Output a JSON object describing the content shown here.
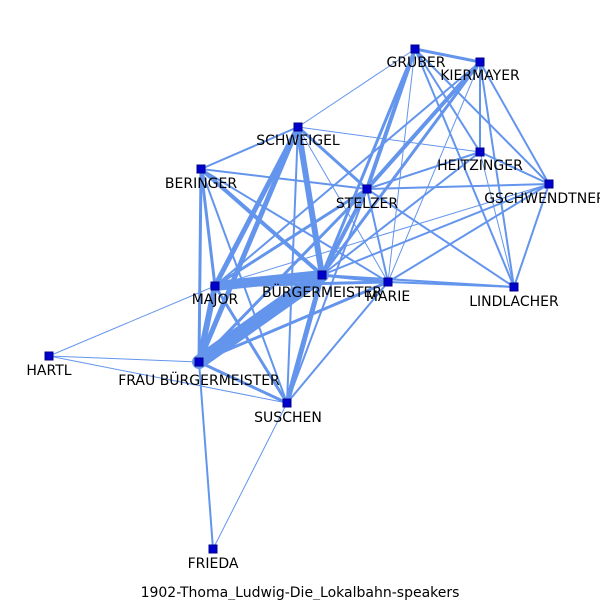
{
  "title": "1902-Thoma_Ludwig-Die_Lokalbahn-speakers",
  "colors": {
    "edge": "#6495ED",
    "node_fill": "#0000CD",
    "node_stroke": "#00008B",
    "text": "#000000",
    "background": "#FFFFFF"
  },
  "nodes": [
    {
      "id": "gruber",
      "label": "GRUBER"
    },
    {
      "id": "kiermayer",
      "label": "KIERMAYER"
    },
    {
      "id": "schweigel",
      "label": "SCHWEIGEL"
    },
    {
      "id": "heitzinger",
      "label": "HEITZINGER"
    },
    {
      "id": "beringer",
      "label": "BERINGER"
    },
    {
      "id": "stelzer",
      "label": "STELZER"
    },
    {
      "id": "gschwendtner",
      "label": "GSCHWENDTNER"
    },
    {
      "id": "major",
      "label": "MAJOR"
    },
    {
      "id": "burgermeister",
      "label": "BÜRGERMEISTER"
    },
    {
      "id": "marie",
      "label": "MARIE"
    },
    {
      "id": "lindlacher",
      "label": "LINDLACHER"
    },
    {
      "id": "hartl",
      "label": "HARTL"
    },
    {
      "id": "frau_burgermeister",
      "label": "FRAU BÜRGERMEISTER"
    },
    {
      "id": "suschen",
      "label": "SUSCHEN"
    },
    {
      "id": "frieda",
      "label": "FRIEDA"
    }
  ],
  "edges": [
    {
      "source": "gruber",
      "target": "kiermayer",
      "weight": 3
    },
    {
      "source": "gruber",
      "target": "heitzinger",
      "weight": 2
    },
    {
      "source": "gruber",
      "target": "gschwendtner",
      "weight": 2
    },
    {
      "source": "gruber",
      "target": "stelzer",
      "weight": 4
    },
    {
      "source": "gruber",
      "target": "burgermeister",
      "weight": 3
    },
    {
      "source": "gruber",
      "target": "lindlacher",
      "weight": 2
    },
    {
      "source": "gruber",
      "target": "schweigel",
      "weight": 1
    },
    {
      "source": "gruber",
      "target": "marie",
      "weight": 1
    },
    {
      "source": "kiermayer",
      "target": "heitzinger",
      "weight": 2
    },
    {
      "source": "kiermayer",
      "target": "gschwendtner",
      "weight": 2
    },
    {
      "source": "kiermayer",
      "target": "stelzer",
      "weight": 4
    },
    {
      "source": "kiermayer",
      "target": "burgermeister",
      "weight": 3
    },
    {
      "source": "kiermayer",
      "target": "lindlacher",
      "weight": 2
    },
    {
      "source": "kiermayer",
      "target": "major",
      "weight": 2
    },
    {
      "source": "kiermayer",
      "target": "marie",
      "weight": 1
    },
    {
      "source": "schweigel",
      "target": "burgermeister",
      "weight": 6
    },
    {
      "source": "schweigel",
      "target": "major",
      "weight": 5
    },
    {
      "source": "schweigel",
      "target": "frau_burgermeister",
      "weight": 5
    },
    {
      "source": "schweigel",
      "target": "stelzer",
      "weight": 3
    },
    {
      "source": "schweigel",
      "target": "beringer",
      "weight": 2
    },
    {
      "source": "schweigel",
      "target": "marie",
      "weight": 1
    },
    {
      "source": "schweigel",
      "target": "suschen",
      "weight": 2
    },
    {
      "source": "schweigel",
      "target": "heitzinger",
      "weight": 1
    },
    {
      "source": "beringer",
      "target": "major",
      "weight": 3
    },
    {
      "source": "beringer",
      "target": "frau_burgermeister",
      "weight": 3
    },
    {
      "source": "beringer",
      "target": "burgermeister",
      "weight": 4
    },
    {
      "source": "beringer",
      "target": "stelzer",
      "weight": 2
    },
    {
      "source": "beringer",
      "target": "marie",
      "weight": 2
    },
    {
      "source": "beringer",
      "target": "suschen",
      "weight": 2
    },
    {
      "source": "stelzer",
      "target": "burgermeister",
      "weight": 4
    },
    {
      "source": "stelzer",
      "target": "major",
      "weight": 3
    },
    {
      "source": "stelzer",
      "target": "frau_burgermeister",
      "weight": 3
    },
    {
      "source": "stelzer",
      "target": "heitzinger",
      "weight": 2
    },
    {
      "source": "stelzer",
      "target": "gschwendtner",
      "weight": 2
    },
    {
      "source": "stelzer",
      "target": "marie",
      "weight": 2
    },
    {
      "source": "stelzer",
      "target": "lindlacher",
      "weight": 2
    },
    {
      "source": "stelzer",
      "target": "suschen",
      "weight": 2
    },
    {
      "source": "heitzinger",
      "target": "gschwendtner",
      "weight": 2
    },
    {
      "source": "heitzinger",
      "target": "lindlacher",
      "weight": 1
    },
    {
      "source": "heitzinger",
      "target": "burgermeister",
      "weight": 2
    },
    {
      "source": "gschwendtner",
      "target": "lindlacher",
      "weight": 2
    },
    {
      "source": "gschwendtner",
      "target": "marie",
      "weight": 2
    },
    {
      "source": "gschwendtner",
      "target": "burgermeister",
      "weight": 2
    },
    {
      "source": "gschwendtner",
      "target": "major",
      "weight": 1
    },
    {
      "source": "major",
      "target": "burgermeister",
      "weight": 10
    },
    {
      "source": "major",
      "target": "frau_burgermeister",
      "weight": 6
    },
    {
      "source": "major",
      "target": "suschen",
      "weight": 3
    },
    {
      "source": "major",
      "target": "marie",
      "weight": 3
    },
    {
      "source": "major",
      "target": "hartl",
      "weight": 1
    },
    {
      "source": "burgermeister",
      "target": "frau_burgermeister",
      "weight": 14
    },
    {
      "source": "burgermeister",
      "target": "suschen",
      "weight": 5
    },
    {
      "source": "burgermeister",
      "target": "marie",
      "weight": 3
    },
    {
      "source": "burgermeister",
      "target": "lindlacher",
      "weight": 2
    },
    {
      "source": "marie",
      "target": "frau_burgermeister",
      "weight": 3
    },
    {
      "source": "marie",
      "target": "suschen",
      "weight": 2
    },
    {
      "source": "marie",
      "target": "lindlacher",
      "weight": 2
    },
    {
      "source": "frau_burgermeister",
      "target": "suschen",
      "weight": 3
    },
    {
      "source": "frau_burgermeister",
      "target": "hartl",
      "weight": 1
    },
    {
      "source": "frau_burgermeister",
      "target": "frieda",
      "weight": 2
    },
    {
      "source": "hartl",
      "target": "suschen",
      "weight": 1
    },
    {
      "source": "suschen",
      "target": "frieda",
      "weight": 1
    }
  ]
}
